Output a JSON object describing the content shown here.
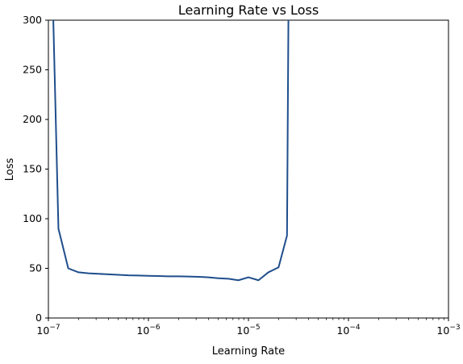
{
  "chart_data": {
    "type": "line",
    "title": "Learning Rate vs Loss",
    "xlabel": "Learning Rate",
    "ylabel": "Loss",
    "xscale": "log",
    "xlim": [
      1e-07,
      0.001
    ],
    "ylim": [
      0,
      300
    ],
    "grid": false,
    "legend": "none",
    "line_color": "#1f4e8c",
    "x_ticks": [
      {
        "value": 1e-07,
        "exp": "-7"
      },
      {
        "value": 1e-06,
        "exp": "-6"
      },
      {
        "value": 1e-05,
        "exp": "-5"
      },
      {
        "value": 0.0001,
        "exp": "-4"
      },
      {
        "value": 0.001,
        "exp": "-3"
      }
    ],
    "y_ticks": [
      0,
      50,
      100,
      150,
      200,
      250,
      300
    ],
    "series": [
      {
        "x": [
          1e-07,
          1.12e-07,
          1.26e-07,
          1.58e-07,
          2e-07,
          2.51e-07,
          3.16e-07,
          3.98e-07,
          5.01e-07,
          6.31e-07,
          7.94e-07,
          1e-06,
          1.26e-06,
          1.58e-06,
          2e-06,
          2.51e-06,
          3.16e-06,
          3.98e-06,
          5.01e-06,
          6.31e-06,
          7.94e-06,
          1e-05,
          1.26e-05,
          1.58e-05,
          2e-05,
          2.43e-05,
          2.51e-05,
          2.6e-05
        ],
        "y": [
          320,
          300,
          90,
          50,
          46,
          45,
          44.5,
          44,
          43.5,
          43,
          42.8,
          42.5,
          42.3,
          42,
          42,
          41.8,
          41.5,
          41,
          40,
          39.5,
          38,
          41,
          38,
          46,
          51,
          83,
          300,
          330
        ]
      }
    ]
  }
}
